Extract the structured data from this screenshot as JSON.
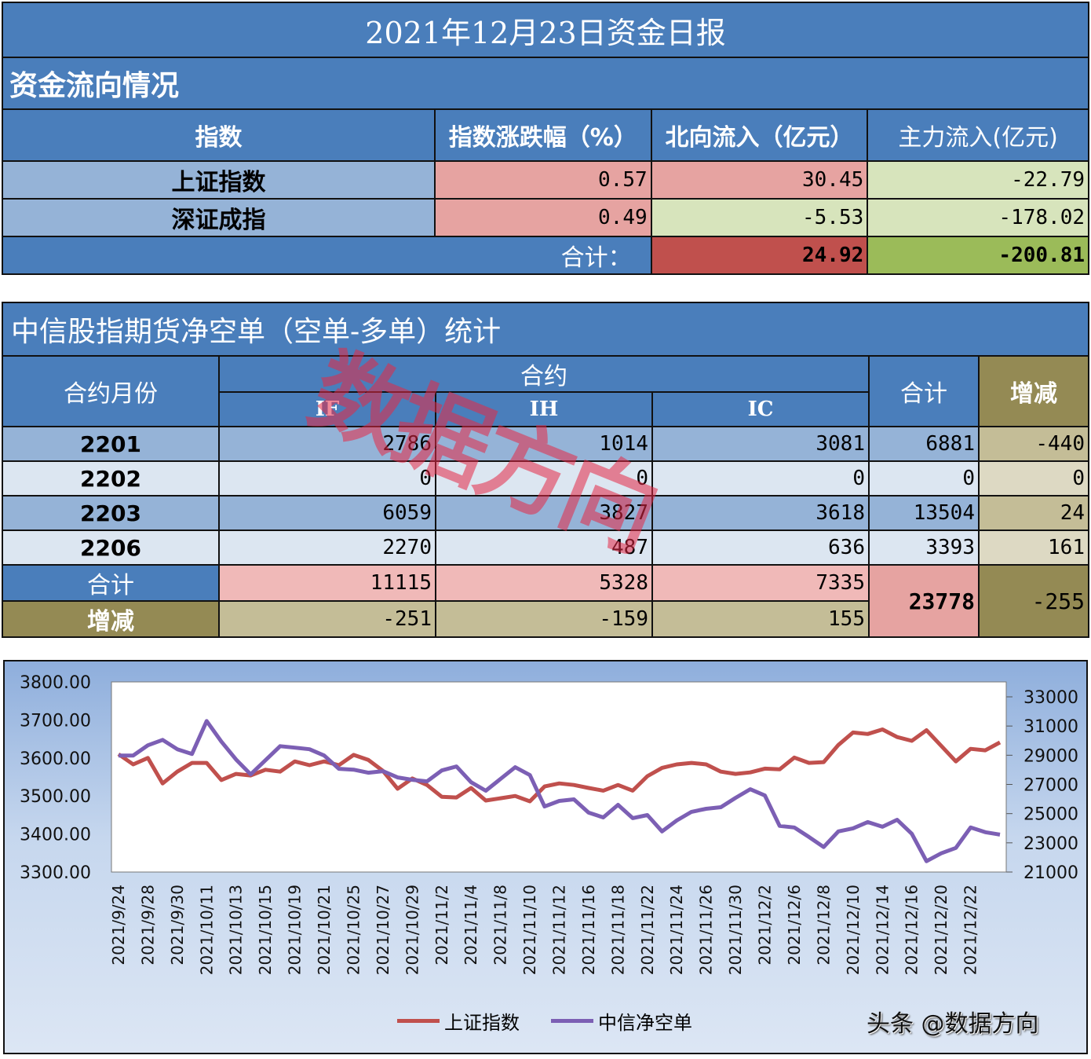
{
  "title": "2021年12月23日资金日报",
  "flow_section": {
    "title": "资金流向情况",
    "headers": [
      "指数",
      "指数涨跌幅（%）",
      "北向流入（亿元）",
      "主力流入(亿元)"
    ],
    "rows": [
      {
        "name": "上证指数",
        "change_pct": "0.57",
        "northbound": "30.45",
        "main_force": "-22.79"
      },
      {
        "name": "深证成指",
        "change_pct": "0.49",
        "northbound": "-5.53",
        "main_force": "-178.02"
      }
    ],
    "total": {
      "label": "合计：",
      "northbound": "24.92",
      "main_force": "-200.81"
    }
  },
  "futures_section": {
    "title": "中信股指期货净空单（空单-多单）统计",
    "headers": {
      "month": "合约月份",
      "contract_group": "合约",
      "contracts": [
        "IF",
        "IH",
        "IC"
      ],
      "total": "合计",
      "change": "增减"
    },
    "rows": [
      {
        "month": "2201",
        "IF": "2786",
        "IH": "1014",
        "IC": "3081",
        "total": "6881",
        "change": "-440"
      },
      {
        "month": "2202",
        "IF": "0",
        "IH": "0",
        "IC": "0",
        "total": "0",
        "change": "0"
      },
      {
        "month": "2203",
        "IF": "6059",
        "IH": "3827",
        "IC": "3618",
        "total": "13504",
        "change": "24"
      },
      {
        "month": "2206",
        "IF": "2270",
        "IH": "487",
        "IC": "636",
        "total": "3393",
        "change": "161"
      }
    ],
    "sum_row": {
      "label": "合计",
      "IF": "11115",
      "IH": "5328",
      "IC": "7335"
    },
    "change_row": {
      "label": "增减",
      "IF": "-251",
      "IH": "-159",
      "IC": "155"
    },
    "grand_total": "23778",
    "grand_change": "-255"
  },
  "watermark": "数据方向",
  "chart_footer": {
    "credit": "头条 @数据方向"
  },
  "colors": {
    "header_blue": "#4a7ebb",
    "sse_line": "#c0504d",
    "net_short_line": "#7c5fb4"
  },
  "chart_data": {
    "type": "line",
    "title": "",
    "xlabel": "",
    "ylabel": "",
    "y_left_ticks": [
      "3800.00",
      "3700.00",
      "3600.00",
      "3500.00",
      "3400.00",
      "3300.00"
    ],
    "y_right_ticks": [
      "33000",
      "31000",
      "29000",
      "27000",
      "25000",
      "23000",
      "21000"
    ],
    "ylim_left": [
      3300,
      3800
    ],
    "ylim_right": [
      21000,
      34000
    ],
    "x_tick_labels": [
      "2021/9/24",
      "2021/9/28",
      "2021/9/30",
      "2021/10/11",
      "2021/10/13",
      "2021/10/15",
      "2021/10/19",
      "2021/10/21",
      "2021/10/25",
      "2021/10/27",
      "2021/10/29",
      "2021/11/2",
      "2021/11/4",
      "2021/11/8",
      "2021/11/10",
      "2021/11/12",
      "2021/11/16",
      "2021/11/18",
      "2021/11/22",
      "2021/11/24",
      "2021/11/26",
      "2021/11/30",
      "2021/12/2",
      "2021/12/6",
      "2021/12/8",
      "2021/12/10",
      "2021/12/14",
      "2021/12/16",
      "2021/12/20",
      "2021/12/22"
    ],
    "grid": false,
    "legend_position": "bottom",
    "series": [
      {
        "name": "上证指数",
        "axis": "left",
        "color": "#c0504d",
        "values": [
          3610,
          3583,
          3600,
          3533,
          3564,
          3587,
          3587,
          3542,
          3558,
          3554,
          3569,
          3564,
          3591,
          3581,
          3591,
          3581,
          3608,
          3595,
          3566,
          3519,
          3546,
          3529,
          3498,
          3496,
          3521,
          3488,
          3494,
          3500,
          3486,
          3525,
          3533,
          3529,
          3521,
          3514,
          3529,
          3514,
          3552,
          3574,
          3583,
          3587,
          3583,
          3564,
          3558,
          3562,
          3572,
          3570,
          3601,
          3587,
          3589,
          3634,
          3667,
          3663,
          3675,
          3655,
          3645,
          3673,
          3632,
          3591,
          3624,
          3620,
          3641
        ]
      },
      {
        "name": "中信净空单",
        "axis": "right",
        "color": "#7c5fb4",
        "values": [
          28980,
          28980,
          29680,
          30050,
          29410,
          29090,
          31340,
          29940,
          28710,
          27690,
          28660,
          29620,
          29520,
          29410,
          28980,
          28070,
          28010,
          27800,
          27910,
          27480,
          27320,
          27210,
          27960,
          28230,
          27150,
          26570,
          27370,
          28180,
          27640,
          25490,
          25870,
          25980,
          25070,
          24740,
          25600,
          24690,
          24900,
          23780,
          24530,
          25120,
          25330,
          25440,
          26080,
          26670,
          26240,
          24160,
          24050,
          23400,
          22710,
          23780,
          23990,
          24420,
          24100,
          24580,
          23620,
          21740,
          22280,
          22650,
          24050,
          23730,
          23560
        ]
      }
    ]
  }
}
